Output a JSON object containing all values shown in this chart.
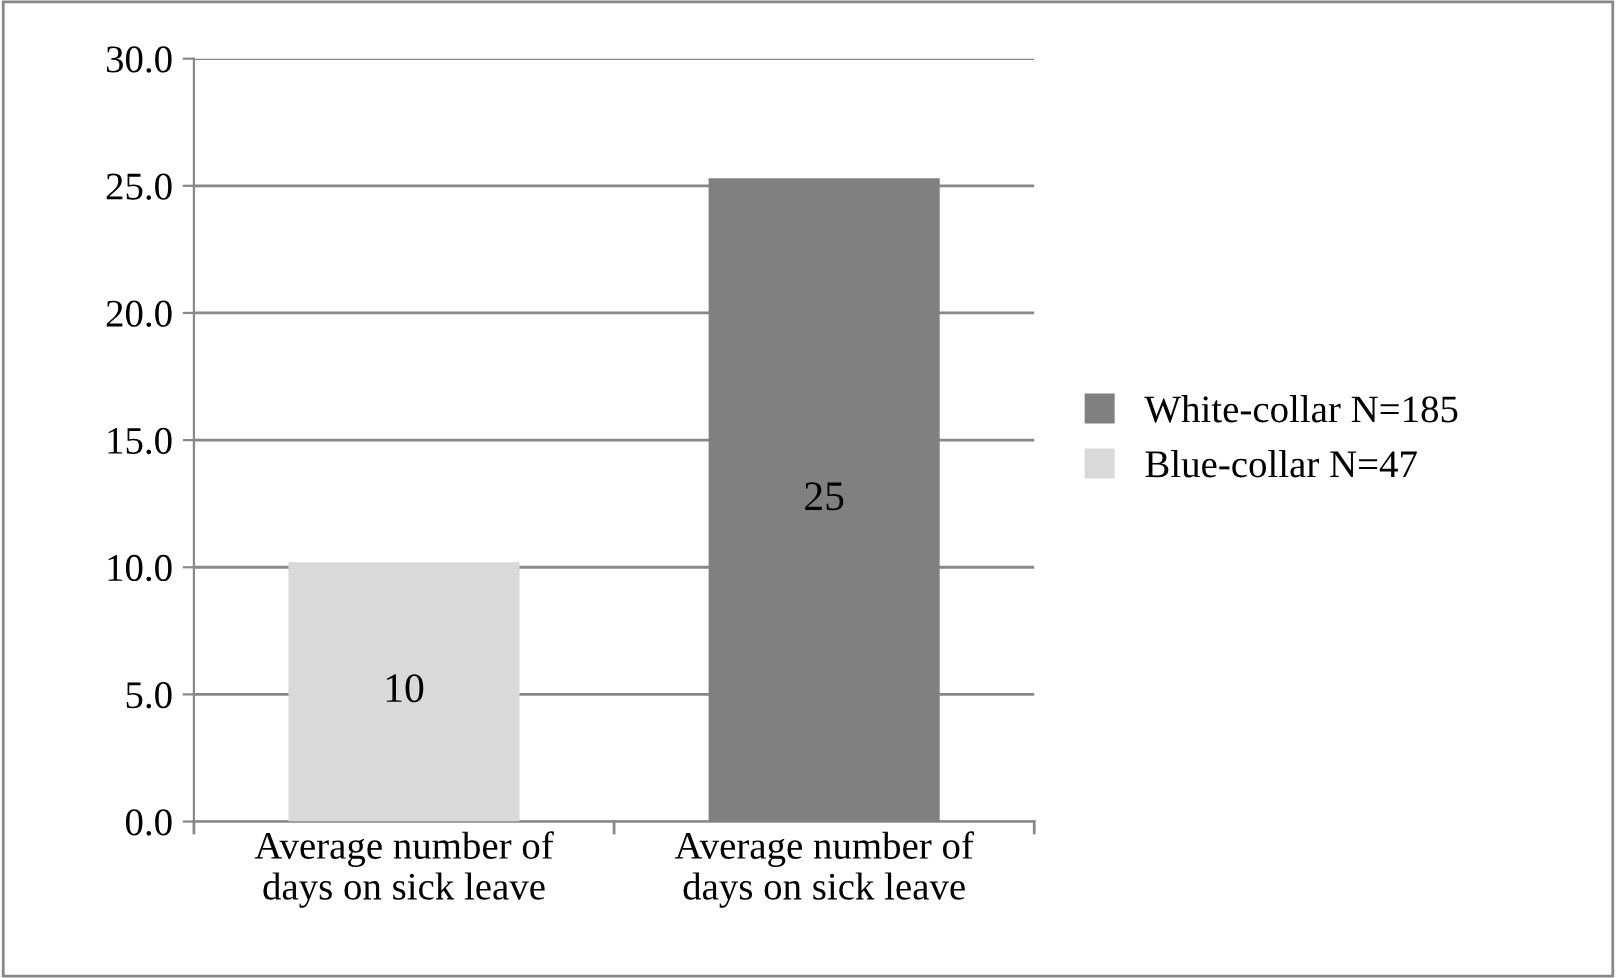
{
  "chart_data": {
    "type": "bar",
    "categories": [
      "Average number of\ndays on sick leave",
      "Average number of\ndays on sick leave"
    ],
    "series": [
      {
        "name": "White-collar N=185",
        "color": "#808080",
        "values": [
          null,
          25.3
        ],
        "value_labels": [
          null,
          "25"
        ]
      },
      {
        "name": "Blue-collar N=47",
        "color": "#d9d9d9",
        "values": [
          10.2,
          null
        ],
        "value_labels": [
          "10",
          null
        ]
      }
    ],
    "ylim": [
      0,
      30
    ],
    "yticks": [
      {
        "value": 0,
        "label": "0.0"
      },
      {
        "value": 5,
        "label": "5.0"
      },
      {
        "value": 10,
        "label": "10.0"
      },
      {
        "value": 15,
        "label": "15.0"
      },
      {
        "value": 20,
        "label": "20.0"
      },
      {
        "value": 25,
        "label": "25.0"
      },
      {
        "value": 30,
        "label": "30.0"
      }
    ],
    "grid": "y",
    "legend": "right"
  }
}
